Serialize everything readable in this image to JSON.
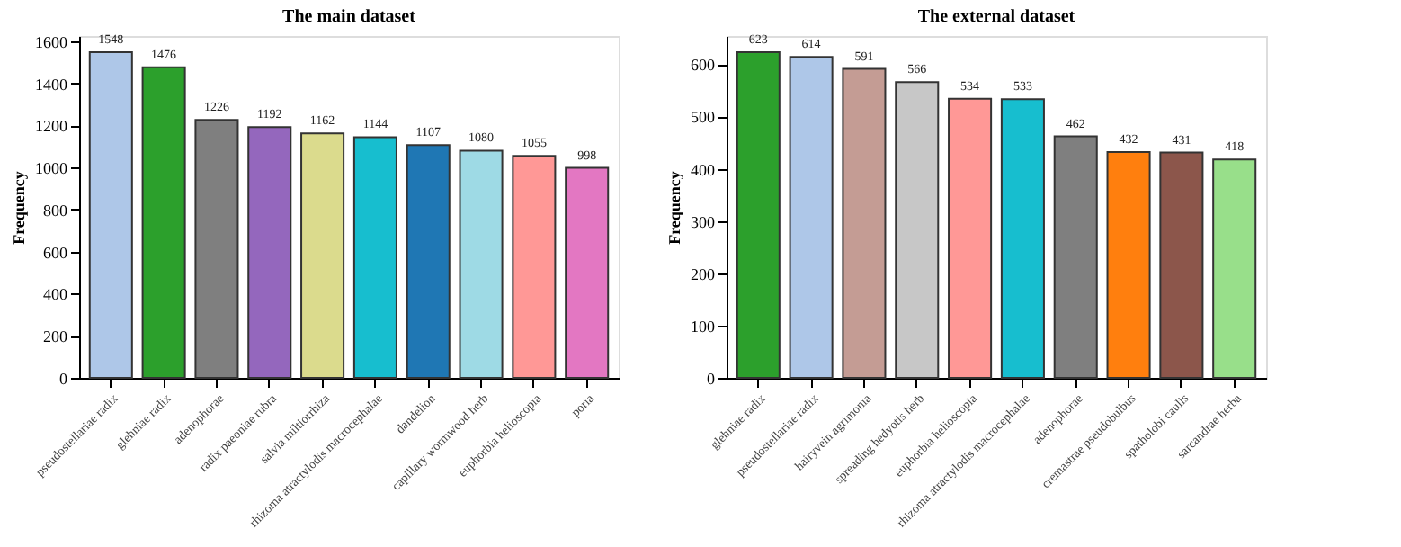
{
  "chart_data": [
    {
      "type": "bar",
      "title": "The main dataset",
      "ylabel": "Frequency",
      "categories": [
        "pseudostellariae radix",
        "glehniae radix",
        "adenophorae",
        "radix paeoniae rubra",
        "salvia miltiorrhiza",
        "rhizoma atractylodis macrocephalae",
        "dandelion",
        "capillary wormwood herb",
        "euphorbia helioscopia",
        "poria"
      ],
      "values": [
        1548,
        1476,
        1226,
        1192,
        1162,
        1144,
        1107,
        1080,
        1055,
        998
      ],
      "colors": [
        "#aec7e8",
        "#2ca02c",
        "#7f7f7f",
        "#9467bd",
        "#dbdb8d",
        "#17becf",
        "#1f77b4",
        "#9edae5",
        "#ff9896",
        "#e377c2"
      ],
      "ylim": [
        0,
        1625
      ],
      "yticks": [
        0,
        200,
        400,
        600,
        800,
        1000,
        1200,
        1400,
        1600
      ],
      "data_labels": true,
      "grid": false
    },
    {
      "type": "bar",
      "title": "The external dataset",
      "ylabel": "Frequency",
      "categories": [
        "glehniae radix",
        "pseudostellariae radix",
        "hairyvein agrimonia",
        "spreading hedyotis herb",
        "euphorbia helioscopia",
        "rhizoma atractylodis macrocephalae",
        "adenophorae",
        "cremastrae pseudobulbus",
        "spatholobi caulis",
        "sarcandrae herba"
      ],
      "values": [
        623,
        614,
        591,
        566,
        534,
        533,
        462,
        432,
        431,
        418
      ],
      "colors": [
        "#2ca02c",
        "#aec7e8",
        "#c49c94",
        "#c7c7c7",
        "#ff9896",
        "#17becf",
        "#7f7f7f",
        "#ff7f0e",
        "#8c564b",
        "#98df8a"
      ],
      "ylim": [
        0,
        654
      ],
      "yticks": [
        0,
        100,
        200,
        300,
        400,
        500,
        600
      ],
      "data_labels": true,
      "grid": false
    }
  ]
}
